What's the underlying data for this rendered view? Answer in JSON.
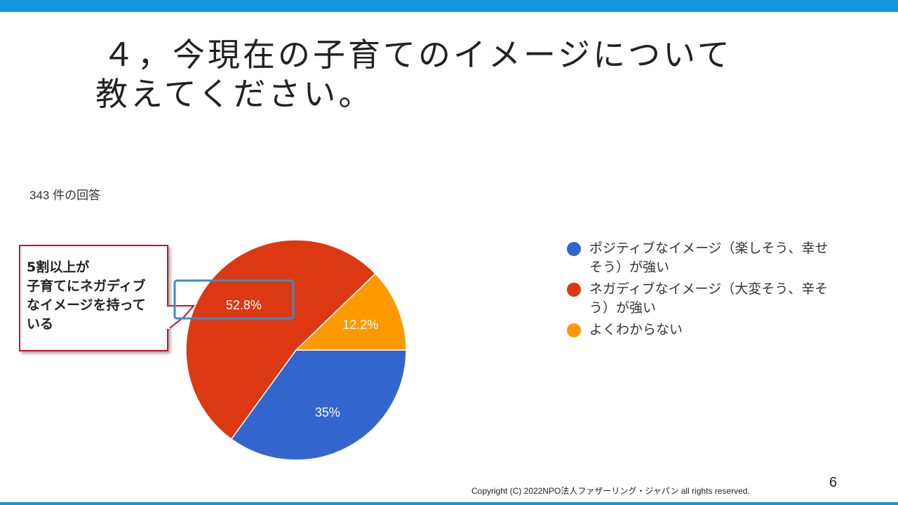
{
  "title": {
    "line1": "４，今現在の子育てのイメージについて",
    "line2": "教えてください。"
  },
  "responses": "343 件の回答",
  "callout": {
    "lines": [
      "5割以上が",
      "子育てにネガディブ",
      "なイメージを持って",
      "いる"
    ],
    "border_color": "#c8102e",
    "highlight_color": "#3a8dc8"
  },
  "chart_data": {
    "type": "pie",
    "slices": [
      {
        "label": "ポジティブなイメージ（楽しそう、幸せそう）が強い",
        "value": 35.0,
        "display": "35%",
        "color": "#3366cc"
      },
      {
        "label": "ネガディブなイメージ（大変そう、辛そう）が強い",
        "value": 52.8,
        "display": "52.8%",
        "color": "#dc3912"
      },
      {
        "label": "よくわからない",
        "value": 12.2,
        "display": "12.2%",
        "color": "#ff9900"
      }
    ],
    "start": "3 o'clock",
    "direction": "clockwise",
    "legend_position": "right"
  },
  "legend": [
    {
      "lines": [
        "ポジティブなイメージ（楽しそう、幸せ",
        "そう）が強い"
      ],
      "color": "#3366cc"
    },
    {
      "lines": [
        "ネガディブなイメージ（大変そう、辛そ",
        "う）が強い"
      ],
      "color": "#dc3912"
    },
    {
      "lines": [
        "よくわからない"
      ],
      "color": "#ff9900"
    }
  ],
  "footer": {
    "copyright": "Copyright (C) 2022NPO法人ファザーリング・ジャパン all rights reserved.",
    "page_number": "6"
  },
  "colors": {
    "accent_bar": "#1296db"
  }
}
